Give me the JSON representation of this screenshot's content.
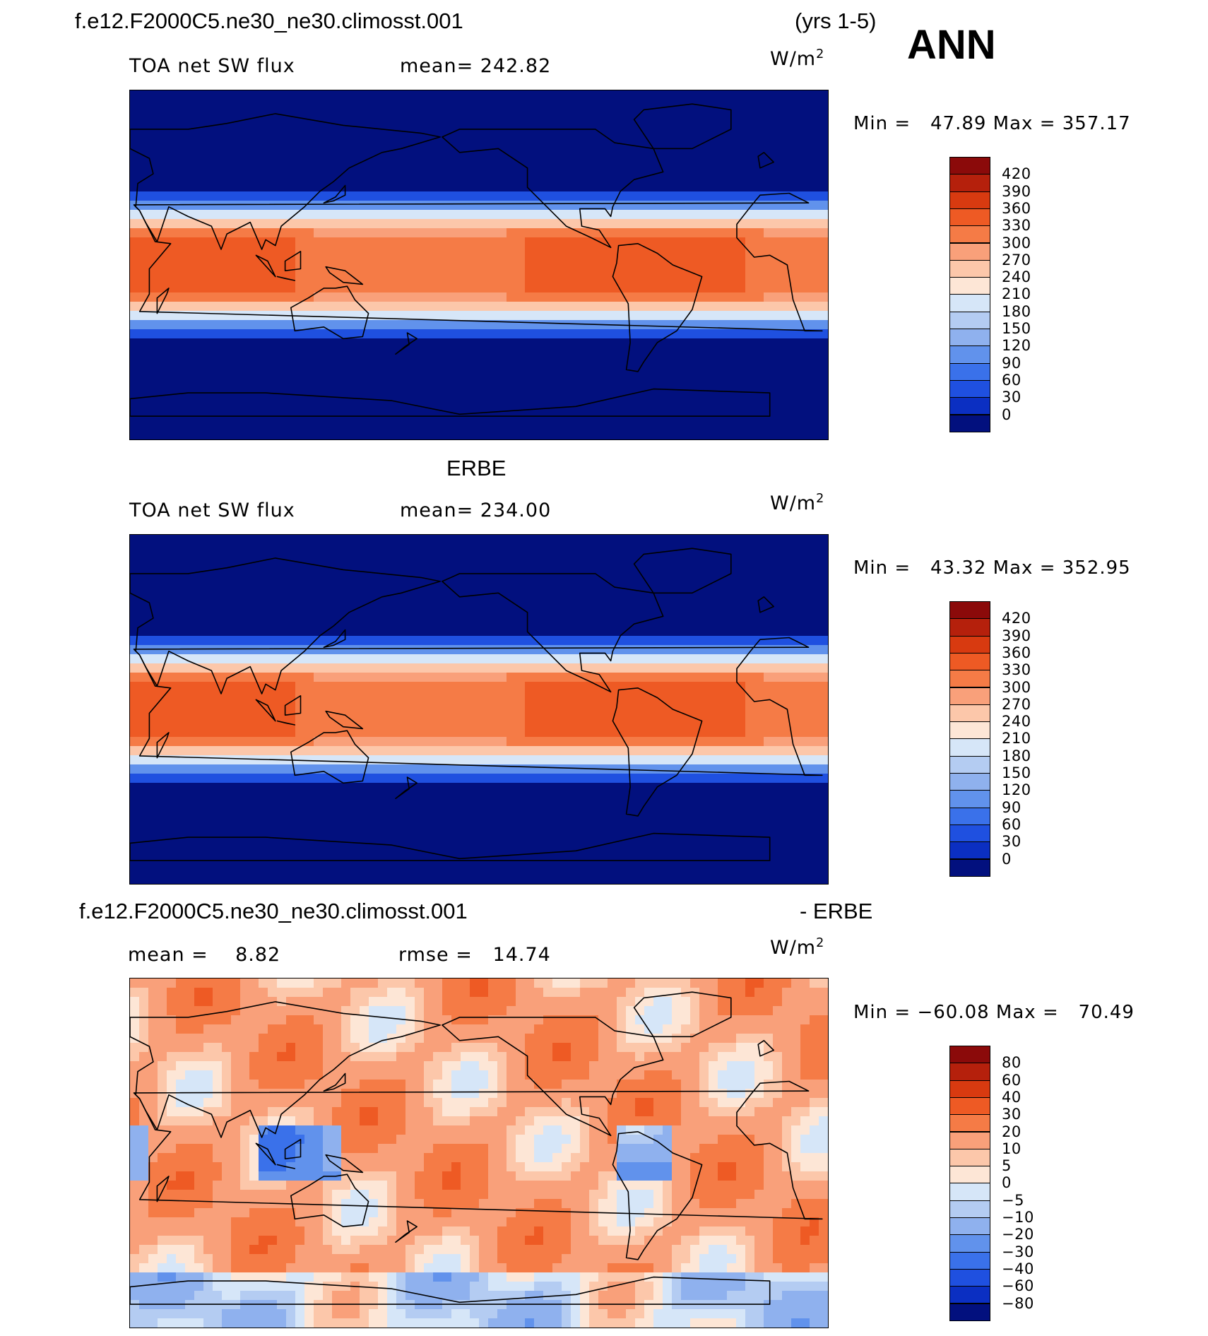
{
  "header": {
    "case_name": "f.e12.F2000C5.ne30_ne30.climosst.001",
    "years": "(yrs 1-5)",
    "season": "ANN"
  },
  "panels": [
    {
      "id": "model",
      "variable": "TOA net SW flux",
      "mean_text": "mean= 242.82",
      "units_base": "W/m",
      "units_exp": "2",
      "minmax": "Min =   47.89 Max = 357.17",
      "colorbar": {
        "labels": [
          "420",
          "390",
          "360",
          "330",
          "300",
          "270",
          "240",
          "210",
          "180",
          "150",
          "120",
          "90",
          "60",
          "30",
          "0"
        ],
        "colors": [
          "#8b0a0a",
          "#b5200c",
          "#d83a10",
          "#ee5a24",
          "#f57b46",
          "#f9a07a",
          "#fcc7aa",
          "#fde6d6",
          "#d6e6f8",
          "#b4ccf2",
          "#8fb1ee",
          "#6192ec",
          "#3a71ea",
          "#1f50e0",
          "#0b2fc2",
          "#02107e"
        ]
      }
    },
    {
      "id": "obs",
      "title": "ERBE",
      "variable": "TOA net SW flux",
      "mean_text": "mean= 234.00",
      "units_base": "W/m",
      "units_exp": "2",
      "minmax": "Min =   43.32 Max = 352.95",
      "colorbar": {
        "labels": [
          "420",
          "390",
          "360",
          "330",
          "300",
          "270",
          "240",
          "210",
          "180",
          "150",
          "120",
          "90",
          "60",
          "30",
          "0"
        ],
        "colors": [
          "#8b0a0a",
          "#b5200c",
          "#d83a10",
          "#ee5a24",
          "#f57b46",
          "#f9a07a",
          "#fcc7aa",
          "#fde6d6",
          "#d6e6f8",
          "#b4ccf2",
          "#8fb1ee",
          "#6192ec",
          "#3a71ea",
          "#1f50e0",
          "#0b2fc2",
          "#02107e"
        ]
      }
    },
    {
      "id": "diff",
      "title_left": "f.e12.F2000C5.ne30_ne30.climosst.001",
      "title_right": "- ERBE",
      "mean_text": "mean =    8.82",
      "rmse_text": "rmse =   14.74",
      "units_base": "W/m",
      "units_exp": "2",
      "minmax": "Min = −60.08 Max =   70.49",
      "colorbar": {
        "labels": [
          "80",
          "60",
          "40",
          "30",
          "20",
          "10",
          "5",
          "0",
          "−5",
          "−10",
          "−20",
          "−30",
          "−40",
          "−60",
          "−80"
        ],
        "colors": [
          "#8b0a0a",
          "#b5200c",
          "#d83a10",
          "#ee5a24",
          "#f57b46",
          "#f9a07a",
          "#fcc7aa",
          "#fde6d6",
          "#d6e6f8",
          "#b4ccf2",
          "#8fb1ee",
          "#6192ec",
          "#3a71ea",
          "#1f50e0",
          "#0b2fc2",
          "#02107e"
        ]
      }
    }
  ]
}
